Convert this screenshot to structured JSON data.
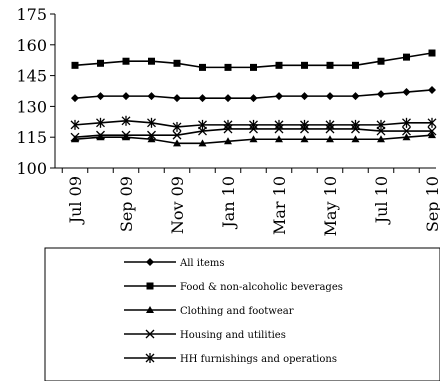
{
  "chart_data": {
    "type": "line",
    "x": [
      "Jul 09",
      "Aug 09",
      "Sep 09",
      "Oct 09",
      "Nov 09",
      "Dec 09",
      "Jan 10",
      "Feb 10",
      "Mar 10",
      "Apr 10",
      "May 10",
      "Jun 10",
      "Jul 10",
      "Aug 10",
      "Sep 10"
    ],
    "x_tick_labels": [
      "Jul 09",
      "Sep 09",
      "Nov 09",
      "Jan 10",
      "Mar 10",
      "May 10",
      "Jul 10",
      "Sep 10"
    ],
    "ylim": [
      100,
      175
    ],
    "y_ticks": [
      100,
      115,
      130,
      145,
      160,
      175
    ],
    "grid": false,
    "legend_position": "bottom",
    "series": [
      {
        "name": "All items",
        "marker": "diamond",
        "values": [
          134,
          135,
          135,
          135,
          134,
          134,
          134,
          134,
          135,
          135,
          135,
          135,
          136,
          137,
          138
        ]
      },
      {
        "name": "Food & non-alcoholic beverages",
        "marker": "square",
        "values": [
          150,
          151,
          152,
          152,
          151,
          149,
          149,
          149,
          150,
          150,
          150,
          150,
          152,
          154,
          156
        ]
      },
      {
        "name": "Clothing and footwear",
        "marker": "triangle",
        "values": [
          114,
          115,
          115,
          114,
          112,
          112,
          113,
          114,
          114,
          114,
          114,
          114,
          114,
          115,
          116
        ]
      },
      {
        "name": "Housing and utilities",
        "marker": "x",
        "values": [
          115,
          116,
          116,
          116,
          116,
          118,
          119,
          119,
          119,
          119,
          119,
          119,
          118,
          118,
          118
        ]
      },
      {
        "name": "HH furnishings and operations",
        "marker": "star",
        "values": [
          121,
          122,
          123,
          122,
          120,
          121,
          121,
          121,
          121,
          121,
          121,
          121,
          121,
          122,
          122
        ]
      }
    ]
  }
}
